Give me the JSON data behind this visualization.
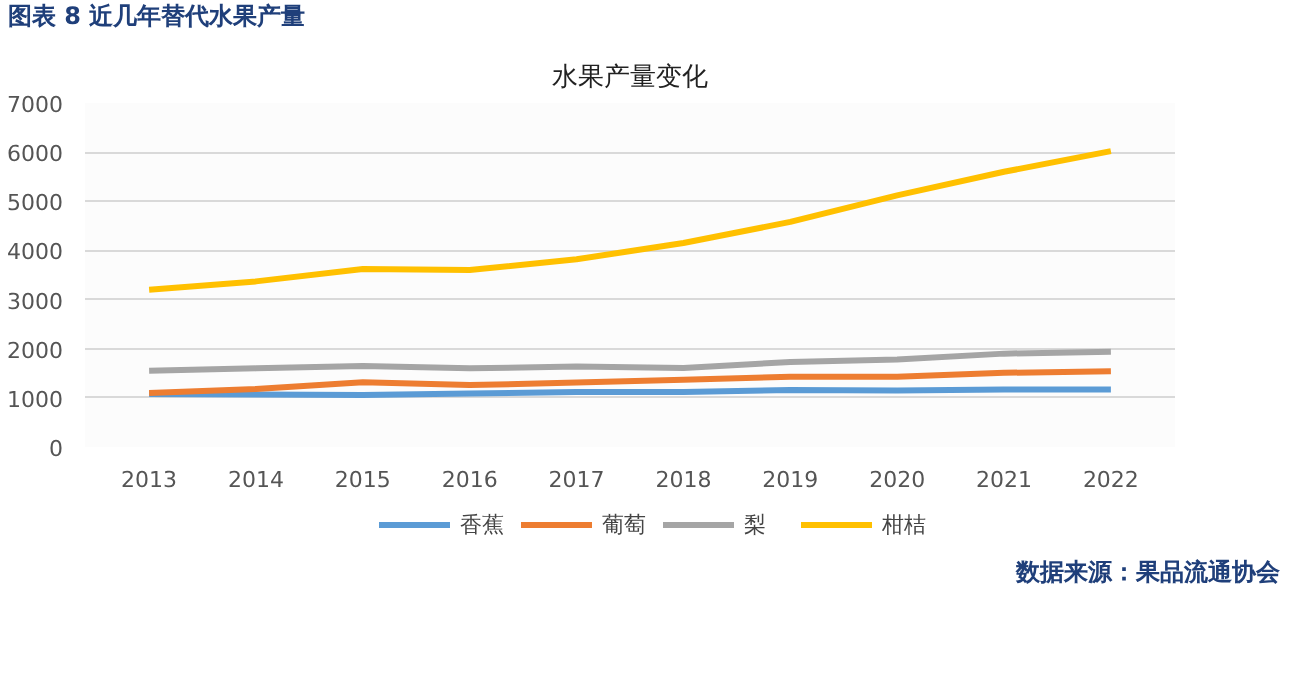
{
  "chart_data": {
    "type": "line",
    "title": "水果产量变化",
    "annotations": [
      "图表 8 近几年替代水果产量",
      "数据来源：果品流通协会"
    ],
    "categories": [
      "2013",
      "2014",
      "2015",
      "2016",
      "2017",
      "2018",
      "2019",
      "2020",
      "2021",
      "2022"
    ],
    "series": [
      {
        "name": "香蕉",
        "color": "#5b9bd5",
        "values": [
          1080,
          1070,
          1060,
          1090,
          1120,
          1120,
          1160,
          1150,
          1170,
          1170
        ]
      },
      {
        "name": "葡萄",
        "color": "#ed7d31",
        "values": [
          1100,
          1180,
          1320,
          1260,
          1310,
          1370,
          1430,
          1430,
          1510,
          1540
        ]
      },
      {
        "name": "梨",
        "color": "#a5a5a5",
        "values": [
          1550,
          1600,
          1650,
          1600,
          1640,
          1610,
          1730,
          1780,
          1900,
          1940
        ]
      },
      {
        "name": "柑桔",
        "color": "#ffc000",
        "values": [
          3200,
          3370,
          3620,
          3600,
          3820,
          4150,
          4580,
          5120,
          5600,
          6020
        ]
      }
    ],
    "ylim": [
      0,
      7000
    ],
    "yticks": [
      0,
      1000,
      2000,
      3000,
      4000,
      5000,
      6000,
      7000
    ],
    "grid": "y",
    "legend": "bottom",
    "marker": "none",
    "line_style": "solid"
  }
}
